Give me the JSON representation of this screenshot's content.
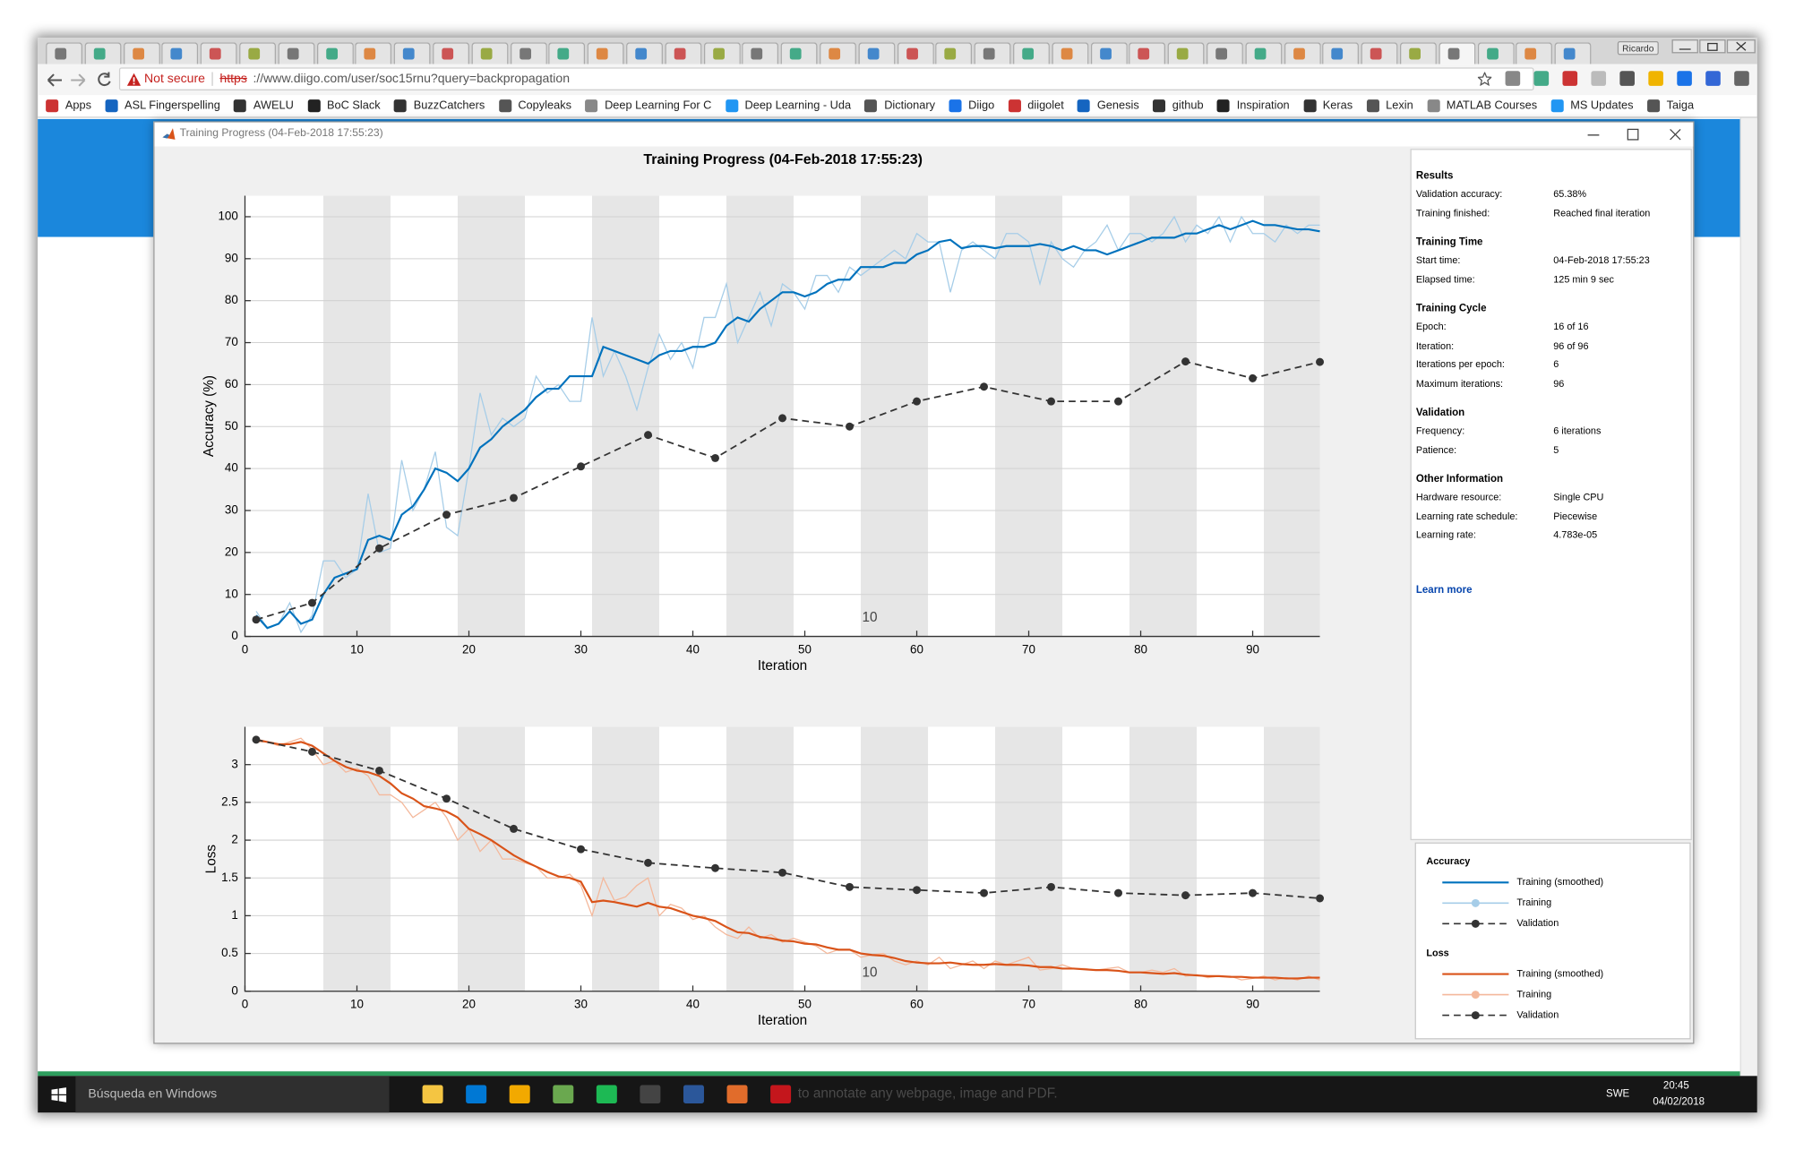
{
  "browser": {
    "user": "Ricardo",
    "security": "Not secure",
    "url_scheme": "https",
    "url_rest": "://www.diigo.com/user/soc15rnu?query=backpropagation",
    "bookmarks": [
      "Apps",
      "ASL Fingerspelling",
      "AWELU",
      "BoC Slack",
      "BuzzCatchers",
      "Copyleaks",
      "Deep Learning For C",
      "Deep Learning - Uda",
      "Dictionary",
      "Diigo",
      "diigolet",
      "Genesis",
      "github",
      "Inspiration",
      "Keras",
      "Lexin",
      "MATLAB Courses",
      "MS Updates",
      "Taiga"
    ],
    "page_footer_text": "to annotate any webpage, image and PDF."
  },
  "window": {
    "title": "Training Progress (04-Feb-2018 17:55:23)"
  },
  "chart_data": [
    {
      "type": "line",
      "title": "Training Progress (04-Feb-2018 17:55:23)",
      "y_label": "Accuracy (%)",
      "x_label": "Iteration",
      "legend_title": "Accuracy",
      "annotation": "10",
      "xlim": [
        0,
        96
      ],
      "ylim": [
        0,
        105
      ],
      "xticks": [
        0,
        10,
        20,
        30,
        40,
        50,
        60,
        70,
        80,
        90
      ],
      "yticks": [
        0,
        10,
        20,
        30,
        40,
        50,
        60,
        70,
        80,
        90,
        100
      ],
      "grid": true,
      "x": [
        1,
        2,
        3,
        4,
        5,
        6,
        7,
        8,
        9,
        10,
        11,
        12,
        13,
        14,
        15,
        16,
        17,
        18,
        19,
        20,
        21,
        22,
        23,
        24,
        25,
        26,
        27,
        28,
        29,
        30,
        31,
        32,
        33,
        34,
        35,
        36,
        37,
        38,
        39,
        40,
        41,
        42,
        43,
        44,
        45,
        46,
        47,
        48,
        49,
        50,
        51,
        52,
        53,
        54,
        55,
        56,
        57,
        58,
        59,
        60,
        61,
        62,
        63,
        64,
        65,
        66,
        67,
        68,
        69,
        70,
        71,
        72,
        73,
        74,
        75,
        76,
        77,
        78,
        79,
        80,
        81,
        82,
        83,
        84,
        85,
        86,
        87,
        88,
        89,
        90,
        91,
        92,
        93,
        94,
        95,
        96
      ],
      "series": [
        {
          "name": "Training (smoothed)",
          "color": "#0072bd",
          "line_style": "solid",
          "values": [
            5,
            2,
            3,
            6,
            3,
            4,
            10,
            14,
            15,
            16,
            23,
            24,
            23,
            29,
            31,
            35,
            40,
            39,
            37,
            40,
            45,
            47,
            50,
            52,
            54,
            57,
            59,
            59,
            62,
            62,
            62,
            69,
            68,
            67,
            66,
            65,
            67,
            68,
            68,
            69,
            69,
            70,
            74,
            76,
            75,
            78,
            80,
            82,
            82,
            81,
            82,
            84,
            85,
            85,
            88,
            88,
            88,
            89,
            89,
            91,
            92,
            94,
            94.5,
            92.5,
            93,
            93,
            92.5,
            93,
            93,
            93,
            93.5,
            93,
            92,
            93,
            92,
            92,
            91,
            92,
            93,
            94,
            95,
            95,
            95,
            96,
            96,
            97,
            98,
            97,
            98,
            99,
            98,
            98,
            97.5,
            97,
            97,
            96.5
          ]
        },
        {
          "name": "Training",
          "color": "#a6cde8",
          "line_style": "solid",
          "values": [
            6,
            2,
            3,
            8,
            1,
            5,
            18,
            18,
            14,
            16,
            34,
            20,
            21,
            42,
            30,
            35,
            44,
            26,
            24,
            40,
            58,
            48,
            52,
            50,
            52,
            62,
            58,
            60,
            56,
            56,
            76,
            62,
            68,
            62,
            54,
            64,
            72,
            66,
            70,
            64,
            76,
            76,
            84,
            70,
            76,
            82,
            74,
            84,
            82,
            78,
            86,
            86,
            82,
            88,
            86,
            88,
            90,
            92,
            90,
            96,
            94,
            94,
            82,
            92,
            94,
            92,
            90,
            96,
            96,
            94,
            84,
            94,
            90,
            88,
            92,
            94,
            98,
            92,
            96,
            96,
            94,
            96,
            100,
            94,
            98,
            96,
            100,
            94,
            100,
            96,
            96,
            94,
            98,
            96,
            98,
            98
          ]
        },
        {
          "name": "Validation",
          "color": "#333333",
          "line_style": "dashed",
          "marker": "o",
          "x": [
            1,
            6,
            12,
            18,
            24,
            30,
            36,
            42,
            48,
            54,
            60,
            66,
            72,
            78,
            84,
            90,
            96
          ],
          "values": [
            4,
            8,
            21,
            29,
            33,
            40.5,
            48,
            42.5,
            52,
            50,
            56,
            59.5,
            56,
            56,
            65.5,
            61.5,
            65.4
          ]
        }
      ]
    },
    {
      "type": "line",
      "y_label": "Loss",
      "x_label": "Iteration",
      "legend_title": "Loss",
      "annotation": "10",
      "xlim": [
        0,
        96
      ],
      "ylim": [
        0,
        3.5
      ],
      "xticks": [
        0,
        10,
        20,
        30,
        40,
        50,
        60,
        70,
        80,
        90
      ],
      "yticks": [
        0,
        0.5,
        1,
        1.5,
        2,
        2.5,
        3
      ],
      "grid": true,
      "x": [
        1,
        2,
        3,
        4,
        5,
        6,
        7,
        8,
        9,
        10,
        11,
        12,
        13,
        14,
        15,
        16,
        17,
        18,
        19,
        20,
        21,
        22,
        23,
        24,
        25,
        26,
        27,
        28,
        29,
        30,
        31,
        32,
        33,
        34,
        35,
        36,
        37,
        38,
        39,
        40,
        41,
        42,
        43,
        44,
        45,
        46,
        47,
        48,
        49,
        50,
        51,
        52,
        53,
        54,
        55,
        56,
        57,
        58,
        59,
        60,
        61,
        62,
        63,
        64,
        65,
        66,
        67,
        68,
        69,
        70,
        71,
        72,
        73,
        74,
        75,
        76,
        77,
        78,
        79,
        80,
        81,
        82,
        83,
        84,
        85,
        86,
        87,
        88,
        89,
        90,
        91,
        92,
        93,
        94,
        95,
        96
      ],
      "series": [
        {
          "name": "Training (smoothed)",
          "color": "#d95319",
          "line_style": "solid",
          "values": [
            3.33,
            3.3,
            3.27,
            3.27,
            3.3,
            3.25,
            3.15,
            3.05,
            2.97,
            2.92,
            2.9,
            2.85,
            2.75,
            2.62,
            2.55,
            2.45,
            2.42,
            2.38,
            2.3,
            2.15,
            2.08,
            2.0,
            1.9,
            1.8,
            1.72,
            1.65,
            1.58,
            1.52,
            1.5,
            1.45,
            1.18,
            1.2,
            1.18,
            1.15,
            1.12,
            1.17,
            1.12,
            1.1,
            1.05,
            1.0,
            0.97,
            0.93,
            0.85,
            0.78,
            0.77,
            0.72,
            0.7,
            0.67,
            0.66,
            0.63,
            0.62,
            0.58,
            0.55,
            0.55,
            0.5,
            0.48,
            0.47,
            0.44,
            0.4,
            0.38,
            0.37,
            0.37,
            0.38,
            0.36,
            0.35,
            0.35,
            0.36,
            0.35,
            0.35,
            0.34,
            0.32,
            0.32,
            0.3,
            0.3,
            0.29,
            0.28,
            0.28,
            0.27,
            0.25,
            0.25,
            0.24,
            0.23,
            0.24,
            0.22,
            0.21,
            0.2,
            0.2,
            0.19,
            0.19,
            0.18,
            0.18,
            0.18,
            0.17,
            0.17,
            0.18,
            0.18
          ]
        },
        {
          "name": "Training",
          "color": "#f4b89b",
          "line_style": "solid",
          "values": [
            3.3,
            3.3,
            3.25,
            3.3,
            3.35,
            3.2,
            3.0,
            3.05,
            2.9,
            2.95,
            2.85,
            2.6,
            2.6,
            2.5,
            2.3,
            2.4,
            2.5,
            2.3,
            2.0,
            2.15,
            1.85,
            2.0,
            1.75,
            1.75,
            1.7,
            1.65,
            1.5,
            1.5,
            1.55,
            1.4,
            1.0,
            1.5,
            1.2,
            1.25,
            1.4,
            1.5,
            1.0,
            1.15,
            1.1,
            0.95,
            1.0,
            0.85,
            0.75,
            0.7,
            0.85,
            0.7,
            0.75,
            0.65,
            0.7,
            0.65,
            0.6,
            0.5,
            0.55,
            0.55,
            0.45,
            0.48,
            0.5,
            0.4,
            0.35,
            0.4,
            0.35,
            0.45,
            0.3,
            0.35,
            0.4,
            0.3,
            0.4,
            0.35,
            0.4,
            0.45,
            0.28,
            0.3,
            0.35,
            0.3,
            0.3,
            0.28,
            0.3,
            0.32,
            0.25,
            0.25,
            0.28,
            0.25,
            0.3,
            0.2,
            0.22,
            0.18,
            0.2,
            0.2,
            0.15,
            0.17,
            0.2,
            0.15,
            0.18,
            0.15,
            0.2,
            0.15
          ]
        },
        {
          "name": "Validation",
          "color": "#333333",
          "line_style": "dashed",
          "marker": "o",
          "x": [
            1,
            6,
            12,
            18,
            24,
            30,
            36,
            42,
            48,
            54,
            60,
            66,
            72,
            78,
            84,
            90,
            96
          ],
          "values": [
            3.33,
            3.17,
            2.92,
            2.55,
            2.15,
            1.88,
            1.7,
            1.63,
            1.57,
            1.38,
            1.34,
            1.3,
            1.38,
            1.3,
            1.27,
            1.3,
            1.23
          ]
        }
      ]
    }
  ],
  "info_panel": {
    "sections": [
      {
        "title": "Results",
        "rows": [
          [
            "Validation accuracy:",
            "65.38%"
          ],
          [
            "Training finished:",
            "Reached final iteration"
          ]
        ]
      },
      {
        "title": "Training Time",
        "rows": [
          [
            "Start time:",
            "04-Feb-2018 17:55:23"
          ],
          [
            "Elapsed time:",
            "125 min 9 sec"
          ]
        ]
      },
      {
        "title": "Training Cycle",
        "rows": [
          [
            "Epoch:",
            "16 of 16"
          ],
          [
            "Iteration:",
            "96 of 96"
          ],
          [
            "Iterations per epoch:",
            6
          ],
          [
            "Maximum iterations:",
            96
          ]
        ]
      },
      {
        "title": "Validation",
        "rows": [
          [
            "Frequency:",
            "6 iterations"
          ],
          [
            "Patience:",
            5
          ]
        ]
      },
      {
        "title": "Other Information",
        "rows": [
          [
            "Hardware resource:",
            "Single CPU"
          ],
          [
            "Learning rate schedule:",
            "Piecewise"
          ],
          [
            "Learning rate:",
            "4.783e-05"
          ]
        ]
      }
    ],
    "link": "Learn more"
  },
  "taskbar": {
    "search": "Búsqueda en Windows",
    "language": "SWE",
    "time": "20:45",
    "date": "04/02/2018"
  }
}
